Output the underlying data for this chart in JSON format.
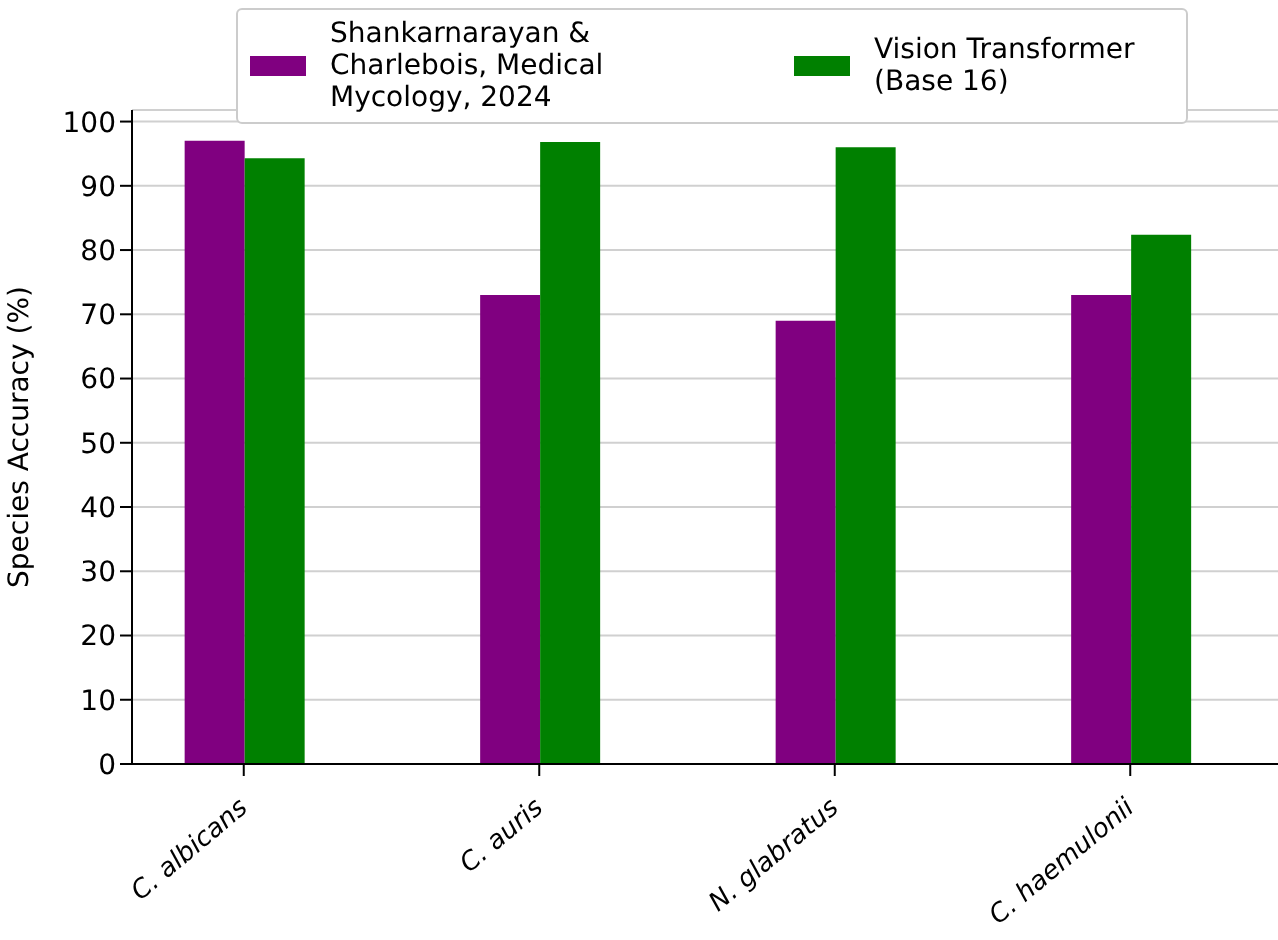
{
  "chart_data": {
    "type": "bar",
    "ylabel": "Species Accuracy (%)",
    "categories": [
      "C. albicans",
      "C. auris",
      "N. glabratus",
      "C. haemulonii"
    ],
    "series": [
      {
        "name": "Shankarnarayan & Charlebois, Medical Mycology, 2024",
        "color": "#800080",
        "values": [
          97,
          73,
          69,
          73
        ]
      },
      {
        "name": "Vision Transformer (Base 16)",
        "color": "#008000",
        "values": [
          94.3,
          96.8,
          96,
          82.4
        ]
      }
    ],
    "ylim": [
      0,
      101.8
    ],
    "yticks": [
      0,
      10,
      20,
      30,
      40,
      50,
      60,
      70,
      80,
      90,
      100
    ],
    "grid": "y",
    "legend": "top"
  }
}
